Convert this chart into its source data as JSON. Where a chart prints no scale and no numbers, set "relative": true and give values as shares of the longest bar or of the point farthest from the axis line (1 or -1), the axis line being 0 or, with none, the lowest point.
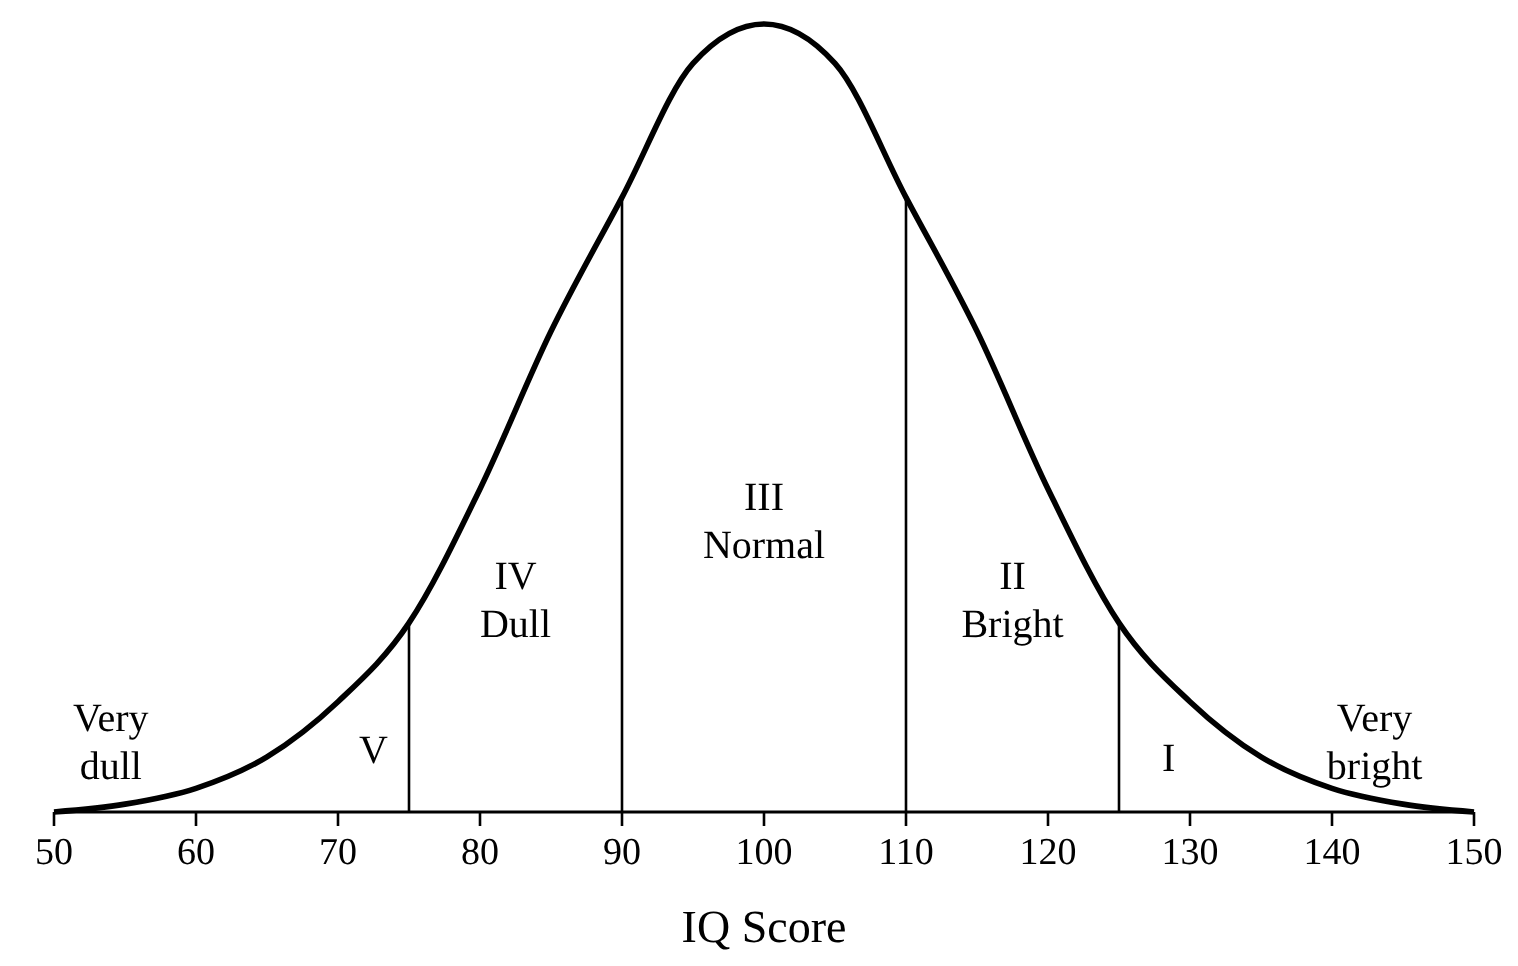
{
  "chart_data": {
    "type": "line",
    "relative": true,
    "xlabel": "IQ Score",
    "color": "#000000",
    "x": [
      50,
      55,
      60,
      65,
      70,
      75,
      80,
      85,
      90,
      95,
      100,
      105,
      110,
      115,
      120,
      125,
      130,
      135,
      140,
      145,
      150
    ],
    "values": [
      0,
      0.01,
      0.03,
      0.07,
      0.14,
      0.24,
      0.41,
      0.61,
      0.78,
      0.95,
      1,
      0.95,
      0.78,
      0.61,
      0.41,
      0.24,
      0.14,
      0.07,
      0.03,
      0.01,
      0
    ],
    "xlim": [
      50,
      150
    ],
    "xticks": [
      50,
      60,
      70,
      80,
      90,
      100,
      110,
      120,
      130,
      140,
      150
    ],
    "ref_lines": [
      {
        "axis": "x",
        "value": 75
      },
      {
        "axis": "x",
        "value": 90
      },
      {
        "axis": "x",
        "value": 110
      },
      {
        "axis": "x",
        "value": 125
      }
    ],
    "annotations": [
      "Very\ndull",
      "V",
      "IV\nDull",
      "III\nNormal",
      "II\nBright",
      "I",
      "Very\nbright"
    ]
  }
}
